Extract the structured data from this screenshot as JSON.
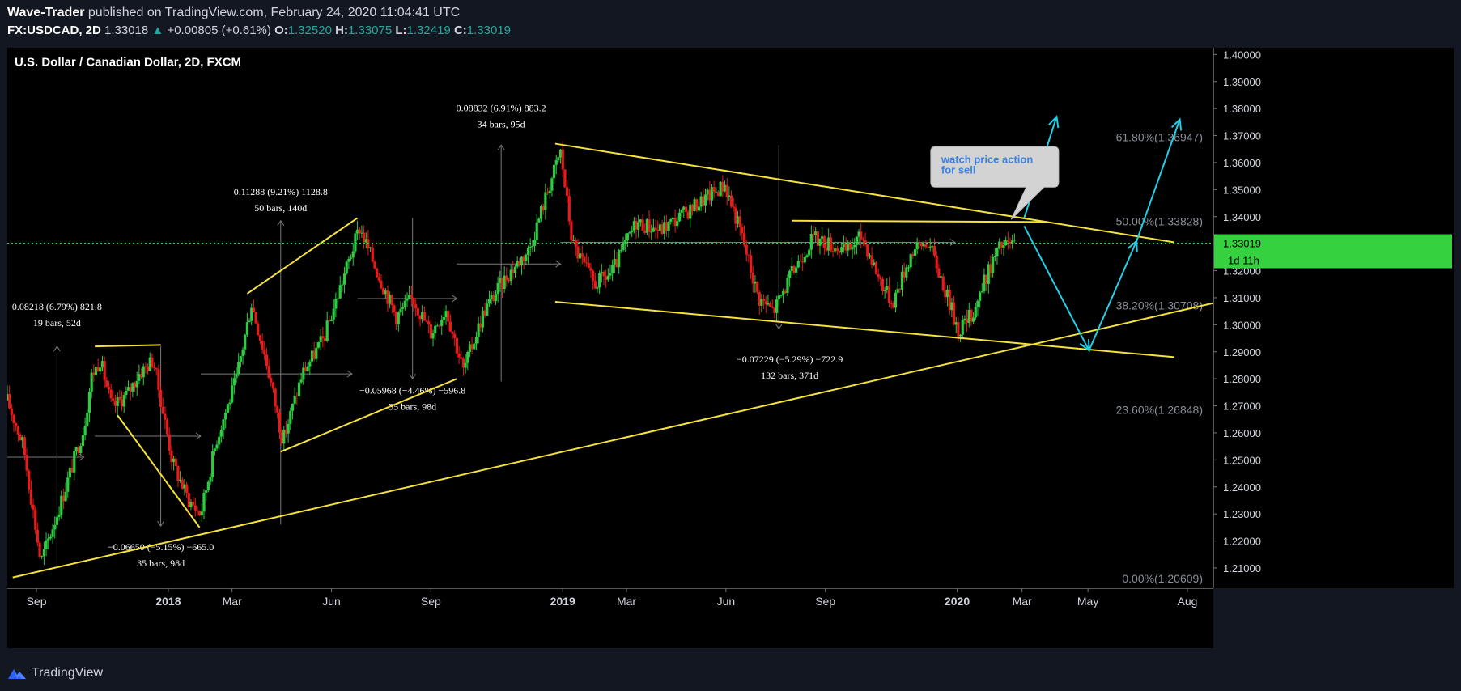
{
  "header": {
    "author": "Wave-Trader",
    "published": "published on TradingView.com, February 24, 2020 11:04:41 UTC",
    "symbol": "FX:USDCAD, 2D",
    "last": "1.33018",
    "change_arrow": "▲",
    "change": "+0.00805 (+0.61%)",
    "o_label": "O:",
    "o": "1.32520",
    "h_label": "H:",
    "h": "1.33075",
    "l_label": "L:",
    "l": "1.32419",
    "c_label": "C:",
    "c": "1.33019"
  },
  "footer": {
    "brand": "TradingView",
    "logo_icon": "tradingview-logo-icon"
  },
  "colors": {
    "background": "#000000",
    "frame": "#131722",
    "up": "#2ecc40",
    "down": "#e81b1b",
    "trendline": "#f5e23b",
    "projection": "#1fd0e6",
    "price_tag": "#36d13f",
    "axis_text": "#d1d4dc",
    "fib_text": "#8a8e99"
  },
  "chart_data": {
    "type": "candlestick",
    "title": "U.S. Dollar / Canadian Dollar, 2D, FXCM",
    "x_labels": [
      "Sep",
      "2018",
      "Mar",
      "Jun",
      "Sep",
      "2019",
      "Mar",
      "Jun",
      "Sep",
      "2020",
      "Mar",
      "May",
      "Aug"
    ],
    "x_label_dates": [
      "2017-09",
      "2018-01",
      "2018-03",
      "2018-06",
      "2018-09",
      "2019-01",
      "2019-03",
      "2019-06",
      "2019-09",
      "2020-01",
      "2020-03",
      "2020-05",
      "2020-08"
    ],
    "x_range": [
      "2017-08-05",
      "2020-08-25"
    ],
    "y_ticks": [
      "1.40000",
      "1.39000",
      "1.38000",
      "1.37000",
      "1.36000",
      "1.35000",
      "1.34000",
      "1.33000",
      "1.32000",
      "1.31000",
      "1.30000",
      "1.29000",
      "1.28000",
      "1.27000",
      "1.26000",
      "1.25000",
      "1.24000",
      "1.23000",
      "1.22000",
      "1.21000"
    ],
    "ylim": [
      1.2025,
      1.4025
    ],
    "current_price": {
      "value": 1.33019,
      "label": "1.33019",
      "countdown": "1d 11h"
    },
    "price_anchors": [
      {
        "date": "2017-08-05",
        "price": 1.272
      },
      {
        "date": "2017-08-20",
        "price": 1.255
      },
      {
        "date": "2017-09-05",
        "price": 1.212
      },
      {
        "date": "2017-09-25",
        "price": 1.236
      },
      {
        "date": "2017-10-15",
        "price": 1.262
      },
      {
        "date": "2017-10-22",
        "price": 1.281
      },
      {
        "date": "2017-10-30",
        "price": 1.287
      },
      {
        "date": "2017-11-10",
        "price": 1.269
      },
      {
        "date": "2017-11-25",
        "price": 1.275
      },
      {
        "date": "2017-12-05",
        "price": 1.282
      },
      {
        "date": "2017-12-18",
        "price": 1.287
      },
      {
        "date": "2018-01-05",
        "price": 1.249
      },
      {
        "date": "2018-01-20",
        "price": 1.235
      },
      {
        "date": "2018-01-31",
        "price": 1.23
      },
      {
        "date": "2018-02-15",
        "price": 1.258
      },
      {
        "date": "2018-03-05",
        "price": 1.28
      },
      {
        "date": "2018-03-19",
        "price": 1.308
      },
      {
        "date": "2018-04-02",
        "price": 1.286
      },
      {
        "date": "2018-04-17",
        "price": 1.257
      },
      {
        "date": "2018-05-05",
        "price": 1.282
      },
      {
        "date": "2018-05-25",
        "price": 1.295
      },
      {
        "date": "2018-06-10",
        "price": 1.315
      },
      {
        "date": "2018-06-27",
        "price": 1.336
      },
      {
        "date": "2018-07-15",
        "price": 1.318
      },
      {
        "date": "2018-07-31",
        "price": 1.303
      },
      {
        "date": "2018-08-15",
        "price": 1.31
      },
      {
        "date": "2018-09-01",
        "price": 1.297
      },
      {
        "date": "2018-09-15",
        "price": 1.306
      },
      {
        "date": "2018-10-01",
        "price": 1.283
      },
      {
        "date": "2018-10-20",
        "price": 1.305
      },
      {
        "date": "2018-11-10",
        "price": 1.318
      },
      {
        "date": "2018-12-01",
        "price": 1.328
      },
      {
        "date": "2018-12-20",
        "price": 1.352
      },
      {
        "date": "2018-12-30",
        "price": 1.364
      },
      {
        "date": "2019-01-10",
        "price": 1.33
      },
      {
        "date": "2019-01-30",
        "price": 1.315
      },
      {
        "date": "2019-02-15",
        "price": 1.319
      },
      {
        "date": "2019-03-10",
        "price": 1.338
      },
      {
        "date": "2019-04-01",
        "price": 1.335
      },
      {
        "date": "2019-04-20",
        "price": 1.34
      },
      {
        "date": "2019-05-10",
        "price": 1.346
      },
      {
        "date": "2019-05-31",
        "price": 1.352
      },
      {
        "date": "2019-06-15",
        "price": 1.334
      },
      {
        "date": "2019-07-01",
        "price": 1.31
      },
      {
        "date": "2019-07-15",
        "price": 1.305
      },
      {
        "date": "2019-08-05",
        "price": 1.322
      },
      {
        "date": "2019-08-20",
        "price": 1.332
      },
      {
        "date": "2019-09-05",
        "price": 1.33
      },
      {
        "date": "2019-09-20",
        "price": 1.327
      },
      {
        "date": "2019-10-05",
        "price": 1.333
      },
      {
        "date": "2019-10-20",
        "price": 1.318
      },
      {
        "date": "2019-11-02",
        "price": 1.308
      },
      {
        "date": "2019-11-20",
        "price": 1.327
      },
      {
        "date": "2019-12-05",
        "price": 1.331
      },
      {
        "date": "2019-12-20",
        "price": 1.314
      },
      {
        "date": "2020-01-02",
        "price": 1.298
      },
      {
        "date": "2020-01-15",
        "price": 1.304
      },
      {
        "date": "2020-02-01",
        "price": 1.322
      },
      {
        "date": "2020-02-10",
        "price": 1.329
      },
      {
        "date": "2020-02-24",
        "price": 1.3302
      }
    ],
    "fib_levels": [
      {
        "label": "61.80%(1.36947)",
        "price": 1.36947
      },
      {
        "label": "50.00%(1.33828)",
        "price": 1.33828
      },
      {
        "label": "38.20%(1.30708)",
        "price": 1.30708
      },
      {
        "label": "23.60%(1.26848)",
        "price": 1.26848
      },
      {
        "label": "0.00%(1.20609)",
        "price": 1.20609
      }
    ],
    "trendlines": [
      {
        "name": "support",
        "from": {
          "date": "2017-08-10",
          "price": 1.2065
        },
        "to": {
          "date": "2020-08-25",
          "price": 1.308
        }
      },
      {
        "name": "upper",
        "from": {
          "date": "2018-12-25",
          "price": 1.367
        },
        "to": {
          "date": "2020-07-20",
          "price": 1.3305
        }
      },
      {
        "name": "lower",
        "from": {
          "date": "2018-12-25",
          "price": 1.3085
        },
        "to": {
          "date": "2020-07-20",
          "price": 1.288
        }
      },
      {
        "name": "resistance",
        "from": {
          "date": "2019-08-01",
          "price": 1.3385
        },
        "to": {
          "date": "2020-03-25",
          "price": 1.338
        }
      },
      {
        "name": "wedge-2017-top",
        "from": {
          "date": "2017-10-25",
          "price": 1.292
        },
        "to": {
          "date": "2017-12-25",
          "price": 1.2925
        }
      },
      {
        "name": "wedge-2017-down",
        "from": {
          "date": "2017-11-15",
          "price": 1.2665
        },
        "to": {
          "date": "2018-01-30",
          "price": 1.225
        }
      },
      {
        "name": "channel-2018-top",
        "from": {
          "date": "2018-03-15",
          "price": 1.3115
        },
        "to": {
          "date": "2018-06-25",
          "price": 1.3395
        }
      },
      {
        "name": "channel-2018-bottom",
        "from": {
          "date": "2018-04-15",
          "price": 1.253
        },
        "to": {
          "date": "2018-09-25",
          "price": 1.28
        }
      }
    ],
    "projections": [
      {
        "points": [
          {
            "date": "2020-03-03",
            "price": 1.3395
          },
          {
            "date": "2020-04-02",
            "price": 1.377
          }
        ]
      },
      {
        "points": [
          {
            "date": "2020-03-03",
            "price": 1.3365
          },
          {
            "date": "2020-05-02",
            "price": 1.2905
          },
          {
            "date": "2020-06-15",
            "price": 1.331
          },
          {
            "date": "2020-07-25",
            "price": 1.376
          }
        ]
      }
    ],
    "measurements": [
      {
        "text": [
          "0.08218 (6.79%) 821.8",
          "19 bars, 52d"
        ],
        "date": "2017-09-20",
        "price": 1.3055,
        "from": {
          "date": "2017-09-20",
          "price": 1.21
        },
        "to": {
          "date": "2017-09-20",
          "price": 1.292
        },
        "hfrom": {
          "date": "2017-08-05",
          "price": 1.251
        },
        "hto": {
          "date": "2017-10-15",
          "price": 1.251
        }
      },
      {
        "text": [
          "0.11288 (9.21%) 1128.8",
          "50 bars, 140d"
        ],
        "date": "2018-04-15",
        "price": 1.348,
        "from": {
          "date": "2018-04-15",
          "price": 1.226
        },
        "to": {
          "date": "2018-04-15",
          "price": 1.3385
        },
        "hfrom": {
          "date": "2018-01-31",
          "price": 1.2818
        },
        "hto": {
          "date": "2018-06-20",
          "price": 1.2818
        }
      },
      {
        "text": [
          "0.08832 (6.91%) 883.2",
          "34 bars, 95d"
        ],
        "date": "2018-11-05",
        "price": 1.379,
        "from": {
          "date": "2018-11-05",
          "price": 1.279
        },
        "to": {
          "date": "2018-11-05",
          "price": 1.3665
        },
        "hfrom": {
          "date": "2018-09-25",
          "price": 1.3225
        },
        "hto": {
          "date": "2018-12-30",
          "price": 1.3225
        }
      },
      {
        "text": [
          "−0.06650 (−5.15%) −665.0",
          "35 bars, 98d"
        ],
        "date": "2017-12-25",
        "price": 1.2165,
        "from": {
          "date": "2017-12-25",
          "price": 1.292
        },
        "to": {
          "date": "2017-12-25",
          "price": 1.2255
        },
        "hfrom": {
          "date": "2017-10-25",
          "price": 1.2588
        },
        "hto": {
          "date": "2018-01-31",
          "price": 1.2588
        }
      },
      {
        "text": [
          "−0.05968 (−4.46%) −596.8",
          "35 bars, 98d"
        ],
        "date": "2018-08-15",
        "price": 1.2745,
        "from": {
          "date": "2018-08-15",
          "price": 1.3395
        },
        "to": {
          "date": "2018-08-15",
          "price": 1.28
        },
        "hfrom": {
          "date": "2018-06-25",
          "price": 1.3097
        },
        "hto": {
          "date": "2018-09-25",
          "price": 1.3097
        }
      },
      {
        "text": [
          "−0.07229 (−5.29%) −722.9",
          "132 bars, 371d"
        ],
        "date": "2019-07-30",
        "price": 1.286,
        "from": {
          "date": "2019-07-20",
          "price": 1.3665
        },
        "to": {
          "date": "2019-07-20",
          "price": 1.2985
        },
        "hfrom": {
          "date": "2018-12-30",
          "price": 1.3305
        },
        "hto": {
          "date": "2019-12-30",
          "price": 1.3305
        }
      }
    ],
    "annotation": {
      "text": [
        "watch price action",
        "for sell"
      ],
      "date": "2019-12-15",
      "price": 1.3575
    }
  }
}
